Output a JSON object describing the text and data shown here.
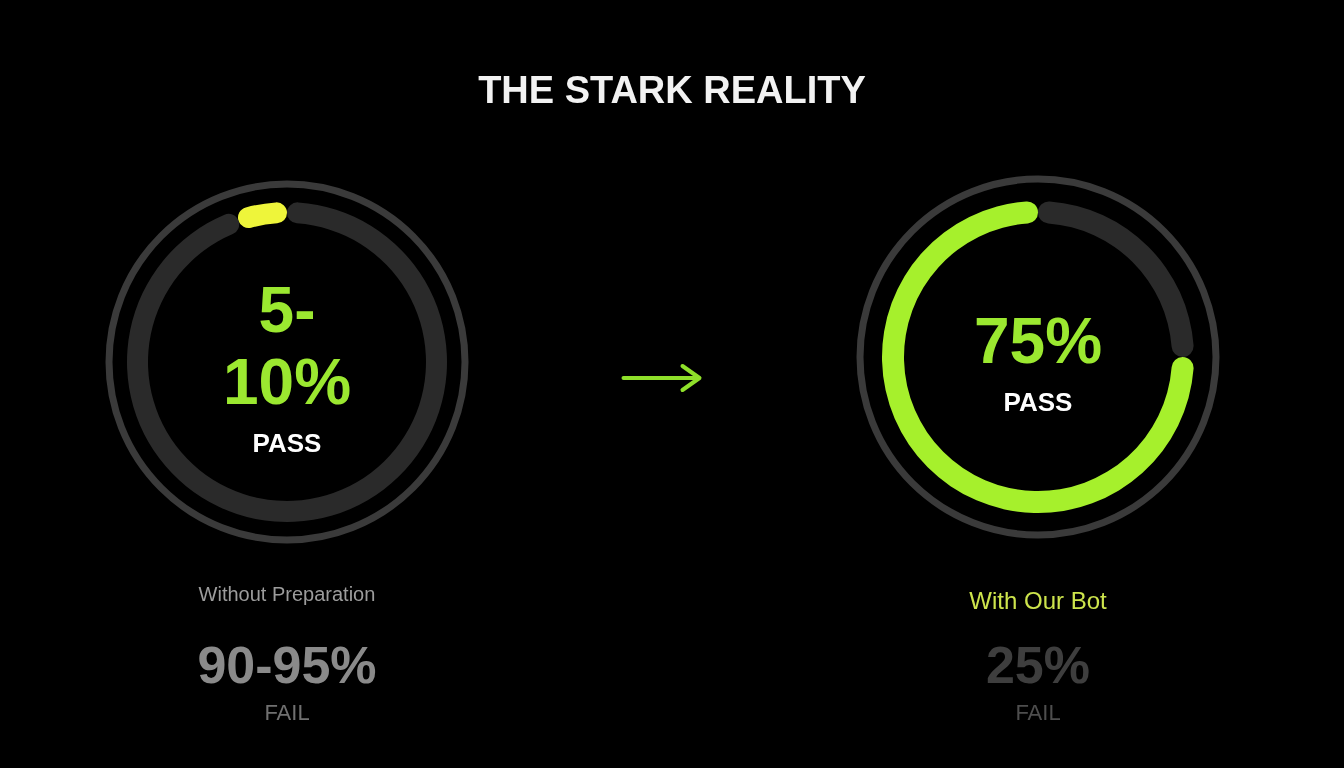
{
  "chart_data": {
    "type": "donut",
    "title": "THE STARK REALITY",
    "categories": [
      "PASS",
      null
    ],
    "series": [
      {
        "name": "Without Preparation",
        "colors": [
          "#eef53a",
          "#2a2a2a"
        ],
        "values": [
          5,
          90
        ],
        "value_labels": [
          "5-10%",
          null
        ]
      },
      {
        "name": "With Our Bot",
        "colors": [
          "#a6f02c",
          "#2a2a2a"
        ],
        "values": [
          75,
          25
        ],
        "value_labels": [
          "75%",
          null
        ]
      }
    ],
    "annotations": [
      "90-95%\nFAIL",
      "25%\nFAIL"
    ]
  }
}
